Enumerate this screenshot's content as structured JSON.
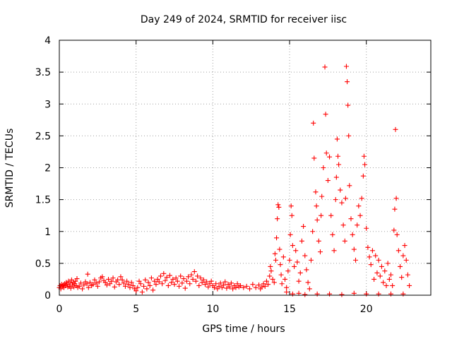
{
  "chart_data": {
    "type": "scatter",
    "title": "Day 249 of 2024, SRMTID for receiver iisc",
    "xlabel": "GPS time / hours",
    "ylabel": "SRMTID / TECUs",
    "xlim": [
      0,
      24.2
    ],
    "ylim": [
      0,
      4
    ],
    "xticks": [
      0,
      5,
      10,
      15,
      20
    ],
    "xtick_labels": [
      "0",
      "5",
      "10",
      "15",
      "20"
    ],
    "yticks": [
      0,
      0.5,
      1,
      1.5,
      2,
      2.5,
      3,
      3.5,
      4
    ],
    "ytick_labels": [
      "0",
      "0.5",
      "1",
      "1.5",
      "2",
      "2.5",
      "3",
      "3.5",
      "4"
    ],
    "grid": true,
    "marker": "+",
    "series": [
      {
        "name": "SRMTID",
        "color": "#ff0000",
        "points": [
          [
            0.0,
            0.12
          ],
          [
            0.05,
            0.15
          ],
          [
            0.1,
            0.1
          ],
          [
            0.15,
            0.17
          ],
          [
            0.2,
            0.14
          ],
          [
            0.25,
            0.16
          ],
          [
            0.3,
            0.12
          ],
          [
            0.35,
            0.18
          ],
          [
            0.4,
            0.15
          ],
          [
            0.45,
            0.2
          ],
          [
            0.5,
            0.17
          ],
          [
            0.55,
            0.13
          ],
          [
            0.6,
            0.22
          ],
          [
            0.65,
            0.14
          ],
          [
            0.7,
            0.19
          ],
          [
            0.75,
            0.11
          ],
          [
            0.8,
            0.24
          ],
          [
            0.85,
            0.16
          ],
          [
            0.9,
            0.2
          ],
          [
            0.95,
            0.13
          ],
          [
            1.0,
            0.18
          ],
          [
            1.05,
            0.22
          ],
          [
            1.1,
            0.15
          ],
          [
            1.15,
            0.26
          ],
          [
            1.2,
            0.12
          ],
          [
            1.3,
            0.14
          ],
          [
            1.4,
            0.19
          ],
          [
            1.5,
            0.1
          ],
          [
            1.6,
            0.16
          ],
          [
            1.7,
            0.21
          ],
          [
            1.8,
            0.18
          ],
          [
            1.85,
            0.33
          ],
          [
            1.9,
            0.12
          ],
          [
            2.0,
            0.2
          ],
          [
            2.1,
            0.15
          ],
          [
            2.2,
            0.17
          ],
          [
            2.3,
            0.24
          ],
          [
            2.4,
            0.19
          ],
          [
            2.5,
            0.14
          ],
          [
            2.6,
            0.21
          ],
          [
            2.7,
            0.27
          ],
          [
            2.8,
            0.29
          ],
          [
            2.9,
            0.23
          ],
          [
            3.0,
            0.2
          ],
          [
            3.1,
            0.16
          ],
          [
            3.2,
            0.25
          ],
          [
            3.3,
            0.18
          ],
          [
            3.4,
            0.22
          ],
          [
            3.5,
            0.27
          ],
          [
            3.6,
            0.13
          ],
          [
            3.7,
            0.21
          ],
          [
            3.8,
            0.24
          ],
          [
            3.9,
            0.17
          ],
          [
            4.0,
            0.29
          ],
          [
            4.1,
            0.24
          ],
          [
            4.2,
            0.19
          ],
          [
            4.3,
            0.14
          ],
          [
            4.4,
            0.22
          ],
          [
            4.5,
            0.17
          ],
          [
            4.6,
            0.12
          ],
          [
            4.7,
            0.2
          ],
          [
            4.8,
            0.15
          ],
          [
            4.9,
            0.1
          ],
          [
            5.0,
            0.07
          ],
          [
            5.1,
            0.12
          ],
          [
            5.2,
            0.22
          ],
          [
            5.3,
            0.18
          ],
          [
            5.4,
            0.05
          ],
          [
            5.5,
            0.14
          ],
          [
            5.6,
            0.24
          ],
          [
            5.7,
            0.1
          ],
          [
            5.8,
            0.2
          ],
          [
            5.9,
            0.15
          ],
          [
            6.0,
            0.27
          ],
          [
            6.1,
            0.08
          ],
          [
            6.2,
            0.22
          ],
          [
            6.3,
            0.17
          ],
          [
            6.4,
            0.25
          ],
          [
            6.5,
            0.21
          ],
          [
            6.6,
            0.3
          ],
          [
            6.7,
            0.18
          ],
          [
            6.8,
            0.34
          ],
          [
            6.9,
            0.23
          ],
          [
            7.0,
            0.28
          ],
          [
            7.1,
            0.15
          ],
          [
            7.2,
            0.31
          ],
          [
            7.3,
            0.2
          ],
          [
            7.4,
            0.25
          ],
          [
            7.5,
            0.17
          ],
          [
            7.6,
            0.27
          ],
          [
            7.7,
            0.22
          ],
          [
            7.8,
            0.14
          ],
          [
            7.9,
            0.3
          ],
          [
            8.0,
            0.19
          ],
          [
            8.1,
            0.26
          ],
          [
            8.2,
            0.11
          ],
          [
            8.3,
            0.22
          ],
          [
            8.4,
            0.29
          ],
          [
            8.5,
            0.18
          ],
          [
            8.6,
            0.32
          ],
          [
            8.7,
            0.25
          ],
          [
            8.8,
            0.37
          ],
          [
            8.9,
            0.22
          ],
          [
            9.0,
            0.3
          ],
          [
            9.1,
            0.15
          ],
          [
            9.2,
            0.27
          ],
          [
            9.3,
            0.2
          ],
          [
            9.4,
            0.24
          ],
          [
            9.5,
            0.17
          ],
          [
            9.6,
            0.21
          ],
          [
            9.7,
            0.13
          ],
          [
            9.8,
            0.18
          ],
          [
            9.9,
            0.22
          ],
          [
            10.0,
            0.15
          ],
          [
            10.1,
            0.12
          ],
          [
            10.2,
            0.18
          ],
          [
            10.3,
            0.1
          ],
          [
            10.4,
            0.14
          ],
          [
            10.5,
            0.19
          ],
          [
            10.6,
            0.12
          ],
          [
            10.7,
            0.16
          ],
          [
            10.8,
            0.21
          ],
          [
            10.9,
            0.11
          ],
          [
            11.0,
            0.17
          ],
          [
            11.1,
            0.13
          ],
          [
            11.2,
            0.19
          ],
          [
            11.3,
            0.1
          ],
          [
            11.4,
            0.15
          ],
          [
            11.5,
            0.12
          ],
          [
            11.6,
            0.18
          ],
          [
            11.7,
            0.13
          ],
          [
            11.8,
            0.15
          ],
          [
            12.0,
            0.12
          ],
          [
            12.2,
            0.14
          ],
          [
            12.4,
            0.1
          ],
          [
            12.6,
            0.17
          ],
          [
            12.8,
            0.12
          ],
          [
            13.0,
            0.16
          ],
          [
            13.1,
            0.1
          ],
          [
            13.2,
            0.13
          ],
          [
            13.3,
            0.18
          ],
          [
            13.4,
            0.14
          ],
          [
            13.5,
            0.22
          ],
          [
            13.6,
            0.17
          ],
          [
            13.7,
            0.3
          ],
          [
            13.75,
            0.45
          ],
          [
            13.8,
            0.38
          ],
          [
            13.9,
            0.25
          ],
          [
            14.0,
            0.2
          ],
          [
            14.05,
            0.65
          ],
          [
            14.1,
            0.55
          ],
          [
            14.15,
            0.9
          ],
          [
            14.2,
            1.2
          ],
          [
            14.25,
            1.42
          ],
          [
            14.3,
            1.38
          ],
          [
            14.35,
            0.72
          ],
          [
            14.4,
            0.48
          ],
          [
            14.45,
            0.32
          ],
          [
            14.5,
            0.18
          ],
          [
            14.6,
            0.6
          ],
          [
            14.7,
            0.25
          ],
          [
            14.8,
            0.12
          ],
          [
            14.9,
            0.38
          ],
          [
            15.0,
            0.55
          ],
          [
            15.05,
            0.95
          ],
          [
            15.1,
            1.4
          ],
          [
            15.15,
            1.25
          ],
          [
            15.2,
            0.78
          ],
          [
            15.3,
            0.45
          ],
          [
            15.4,
            0.7
          ],
          [
            15.5,
            0.52
          ],
          [
            15.6,
            0.22
          ],
          [
            15.7,
            0.35
          ],
          [
            15.8,
            0.85
          ],
          [
            15.9,
            1.08
          ],
          [
            16.0,
            0.62
          ],
          [
            16.1,
            0.4
          ],
          [
            16.2,
            0.2
          ],
          [
            16.3,
            0.1
          ],
          [
            16.4,
            0.55
          ],
          [
            16.5,
            1.0
          ],
          [
            16.55,
            2.7
          ],
          [
            16.6,
            2.15
          ],
          [
            16.7,
            1.62
          ],
          [
            16.75,
            1.4
          ],
          [
            16.8,
            1.18
          ],
          [
            16.9,
            0.85
          ],
          [
            17.0,
            0.68
          ],
          [
            17.05,
            1.25
          ],
          [
            17.1,
            1.55
          ],
          [
            17.2,
            2.0
          ],
          [
            17.3,
            3.58
          ],
          [
            17.35,
            2.84
          ],
          [
            17.4,
            2.23
          ],
          [
            17.5,
            1.8
          ],
          [
            17.6,
            2.17
          ],
          [
            17.7,
            1.25
          ],
          [
            17.8,
            0.95
          ],
          [
            17.9,
            0.7
          ],
          [
            18.0,
            1.5
          ],
          [
            18.05,
            1.85
          ],
          [
            18.1,
            2.45
          ],
          [
            18.15,
            2.18
          ],
          [
            18.2,
            2.05
          ],
          [
            18.3,
            1.65
          ],
          [
            18.4,
            1.45
          ],
          [
            18.5,
            1.1
          ],
          [
            18.6,
            0.85
          ],
          [
            18.65,
            1.52
          ],
          [
            18.7,
            3.59
          ],
          [
            18.75,
            3.35
          ],
          [
            18.8,
            2.98
          ],
          [
            18.85,
            2.5
          ],
          [
            18.9,
            1.72
          ],
          [
            19.0,
            1.2
          ],
          [
            19.1,
            0.95
          ],
          [
            19.2,
            0.72
          ],
          [
            19.3,
            0.55
          ],
          [
            19.4,
            1.1
          ],
          [
            19.5,
            1.4
          ],
          [
            19.6,
            1.25
          ],
          [
            19.7,
            1.52
          ],
          [
            19.8,
            1.87
          ],
          [
            19.85,
            2.18
          ],
          [
            19.9,
            2.05
          ],
          [
            20.0,
            1.05
          ],
          [
            20.1,
            0.75
          ],
          [
            20.2,
            0.6
          ],
          [
            20.3,
            0.48
          ],
          [
            20.4,
            0.7
          ],
          [
            20.5,
            0.25
          ],
          [
            20.6,
            0.62
          ],
          [
            20.7,
            0.35
          ],
          [
            20.8,
            0.55
          ],
          [
            20.9,
            0.3
          ],
          [
            21.0,
            0.45
          ],
          [
            21.1,
            0.2
          ],
          [
            21.2,
            0.38
          ],
          [
            21.3,
            0.15
          ],
          [
            21.4,
            0.5
          ],
          [
            21.5,
            0.25
          ],
          [
            21.6,
            0.32
          ],
          [
            21.7,
            0.15
          ],
          [
            21.8,
            1.02
          ],
          [
            21.85,
            1.35
          ],
          [
            21.9,
            2.6
          ],
          [
            21.95,
            1.52
          ],
          [
            22.0,
            0.95
          ],
          [
            22.1,
            0.7
          ],
          [
            22.2,
            0.45
          ],
          [
            22.3,
            0.28
          ],
          [
            22.4,
            0.62
          ],
          [
            22.5,
            0.78
          ],
          [
            22.6,
            0.55
          ],
          [
            22.7,
            0.32
          ],
          [
            22.8,
            0.15
          ],
          [
            14.8,
            0.05
          ],
          [
            15.2,
            0.02
          ],
          [
            15.6,
            0.03
          ],
          [
            16.0,
            0.01
          ],
          [
            16.8,
            0.02
          ],
          [
            17.6,
            0.02
          ],
          [
            18.4,
            0.01
          ],
          [
            19.2,
            0.03
          ],
          [
            20.0,
            0.02
          ],
          [
            20.8,
            0.02
          ],
          [
            21.6,
            0.02
          ],
          [
            22.4,
            0.02
          ]
        ]
      }
    ]
  }
}
